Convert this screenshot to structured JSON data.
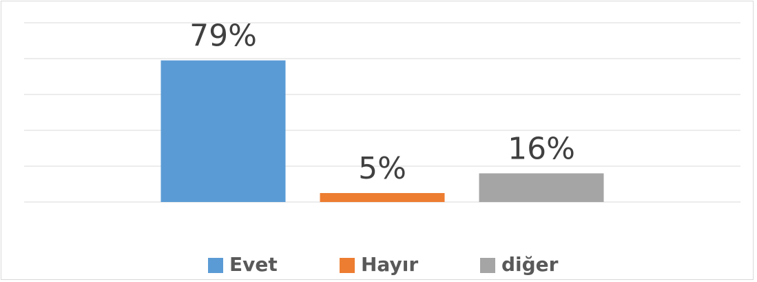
{
  "chart_data": {
    "type": "bar",
    "series": [
      {
        "name": "Evet",
        "color": "#5b9bd5",
        "values": [
          79
        ],
        "value_labels": [
          "79%"
        ]
      },
      {
        "name": "Hayır",
        "color": "#ed7d31",
        "values": [
          5
        ],
        "value_labels": [
          "5%"
        ]
      },
      {
        "name": "diğer",
        "color": "#a5a5a5",
        "values": [
          16
        ],
        "value_labels": [
          "16%"
        ]
      }
    ],
    "ylim": [
      0,
      100
    ],
    "yticks": [
      0,
      20,
      40,
      60,
      80,
      100
    ],
    "grid": true,
    "legend": "bottom"
  }
}
